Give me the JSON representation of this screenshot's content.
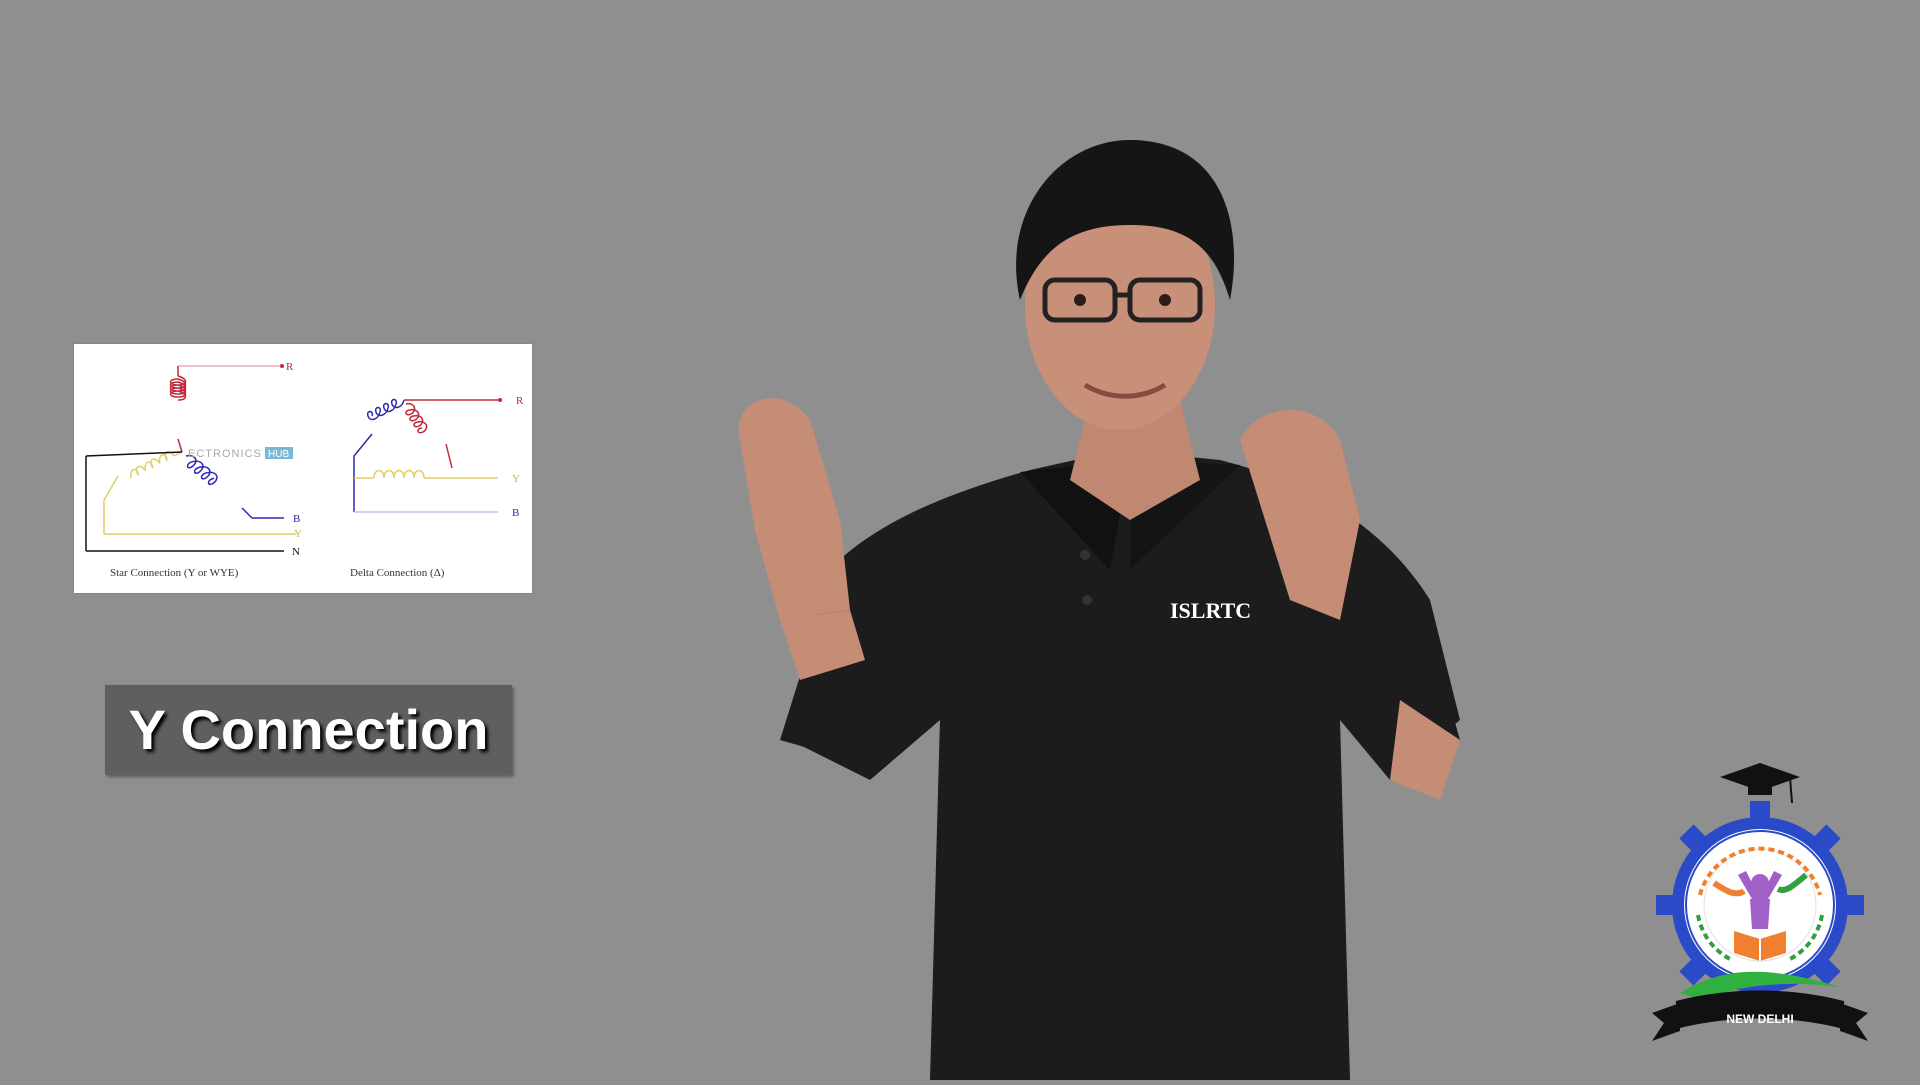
{
  "diagram": {
    "star_caption": "Star Connection (Y or WYE)",
    "delta_caption": "Delta Connection (Δ)",
    "watermark_left": "ECTRONICS",
    "watermark_right": "HUB",
    "star_labels": {
      "r": "R",
      "b": "B",
      "y": "Y",
      "n": "N"
    },
    "delta_labels": {
      "r": "R",
      "y": "Y",
      "b": "B"
    },
    "colors": {
      "red": "#c0283c",
      "yellow": "#e0d060",
      "blue": "#2a2ab0",
      "neutral": "#111111"
    }
  },
  "caption": {
    "text": "Y Connection"
  },
  "presenter": {
    "shirt_text": "ISLRTC"
  },
  "logo": {
    "city": "NEW DELHI"
  }
}
